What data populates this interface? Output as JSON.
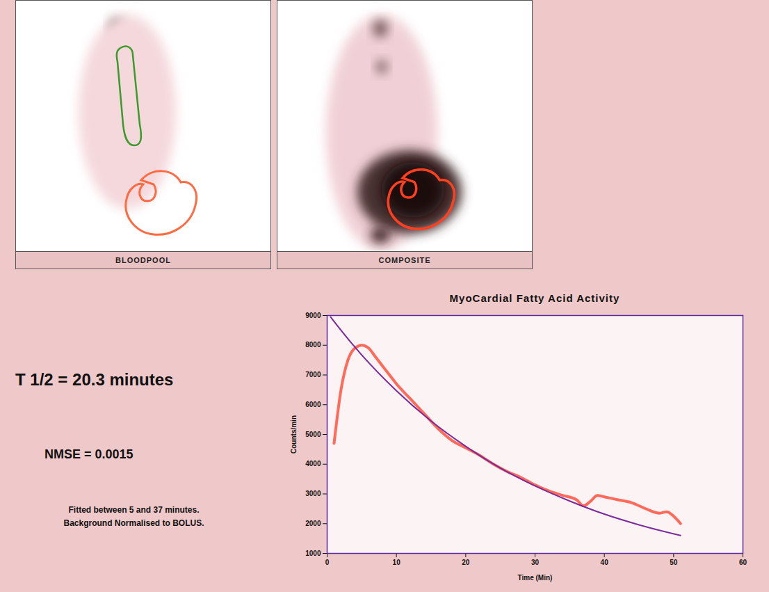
{
  "chart_data": {
    "type": "line",
    "title": "MyoCardial Fatty Acid Activity",
    "x_label": "Time (Min)",
    "y_label": "Counts/min",
    "panel_labels": [
      "BLOODPOOL",
      "COMPOSITE"
    ],
    "annotations": [
      "T 1/2 = 20.3 minutes",
      "NMSE = 0.0015",
      "Fitted between  5 and 37 minutes.",
      "Background Normalised to BOLUS."
    ],
    "xlim": [
      0,
      60
    ],
    "xticks": [
      0,
      10,
      20,
      30,
      40,
      50,
      60
    ],
    "ylim": [
      1000,
      9000
    ],
    "yticks": [
      1000,
      2000,
      3000,
      4000,
      5000,
      6000,
      7000,
      8000,
      9000
    ],
    "grid": false,
    "series": [
      {
        "color": "#ff6a5a",
        "line_style": "solid",
        "x": [
          1,
          2,
          3,
          4,
          5,
          6,
          7,
          8,
          9,
          10,
          12,
          14,
          16,
          18,
          20,
          22,
          24,
          26,
          28,
          30,
          32,
          34,
          36,
          37,
          38,
          39,
          40,
          42,
          44,
          46,
          48,
          49,
          50,
          51
        ],
        "values": [
          4700,
          6500,
          7500,
          7900,
          8000,
          7900,
          7600,
          7300,
          7000,
          6700,
          6200,
          5700,
          5200,
          4800,
          4550,
          4300,
          4000,
          3750,
          3550,
          3300,
          3100,
          2950,
          2800,
          2600,
          2750,
          2950,
          2900,
          2800,
          2700,
          2500,
          2350,
          2400,
          2250,
          2000
        ]
      },
      {
        "color": "#7a2a9a",
        "line_style": "solid",
        "x": [
          0.5,
          1,
          5,
          10,
          15,
          20,
          25,
          30,
          35,
          40,
          45,
          51
        ],
        "values": [
          8950,
          8800,
          7670,
          6470,
          5450,
          4600,
          3870,
          3270,
          2760,
          2320,
          1960,
          1600
        ]
      }
    ]
  }
}
